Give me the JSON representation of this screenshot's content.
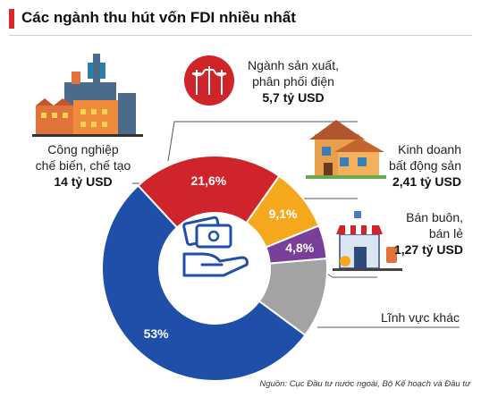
{
  "title": "Các ngành thu hút vốn FDI nhiều nhất",
  "source": "Nguồn: Cục Đầu tư nước ngoài, Bộ Kế hoạch và Đầu tư",
  "labels": {
    "cong_nghiep": [
      "Công nghiệp",
      "chế biến, chế tạo"
    ],
    "cong_nghiep_value": "14 tỷ USD",
    "san_xuat": [
      "Ngành sản xuất,",
      "phân phối điện"
    ],
    "san_xuat_value": "5,7 tỷ USD",
    "bat_dong_san": [
      "Kinh doanh",
      "bất động sản"
    ],
    "bat_dong_san_value": "2,41 tỷ USD",
    "ban_buon": [
      "Bán buôn,",
      "bán lẻ"
    ],
    "ban_buon_value": "1,27 tỷ USD",
    "khac": "Lĩnh vực khác"
  },
  "colors": {
    "cong_nghiep": "#1f4fa8",
    "san_xuat": "#d0242b",
    "bat_dong_san": "#f6a81c",
    "ban_buon": "#7a3f98",
    "khac": "#a3a3a3",
    "accent": "#d62b2b"
  },
  "icons": [
    "factory-icon",
    "power-line-icon",
    "house-icon",
    "shop-icon",
    "money-hand-icon"
  ],
  "chart_data": {
    "type": "pie",
    "donut": true,
    "title": "Các ngành thu hút vốn FDI nhiều nhất",
    "slices": [
      {
        "name": "Ngành sản xuất, phân phối điện",
        "value": 21.6,
        "label": "21,6%",
        "amount": "5,7 tỷ USD"
      },
      {
        "name": "Kinh doanh bất động sản",
        "value": 9.1,
        "label": "9,1%",
        "amount": "2,41 tỷ USD"
      },
      {
        "name": "Bán buôn, bán lẻ",
        "value": 4.8,
        "label": "4,8%",
        "amount": "1,27 tỷ USD"
      },
      {
        "name": "Lĩnh vực khác",
        "value": 11.5,
        "label": "",
        "amount": ""
      },
      {
        "name": "Công nghiệp chế biến, chế tạo",
        "value": 53,
        "label": "53%",
        "amount": "14 tỷ USD"
      }
    ]
  }
}
